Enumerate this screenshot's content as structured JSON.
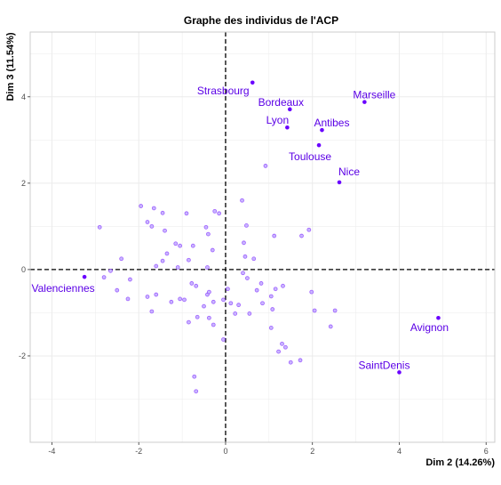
{
  "chart_data": {
    "type": "scatter",
    "title": "Graphe des individus de l'ACP",
    "xlabel": "Dim 2 (14.26%)",
    "ylabel": "Dim 3 (11.54%)",
    "xlim": [
      -4.5,
      6.2
    ],
    "ylim": [
      -4.0,
      5.5
    ],
    "xticks": [
      -4,
      -2,
      0,
      2,
      4,
      6
    ],
    "xtick_labels": [
      "-4",
      "-2",
      "0",
      "2",
      "4",
      "6"
    ],
    "yticks": [
      -2,
      0,
      2,
      4
    ],
    "ytick_labels": [
      "-2",
      "0",
      "2",
      "4"
    ],
    "grid": true,
    "reference_lines": {
      "x": 0,
      "y": 0,
      "style": "dashed"
    },
    "colors": {
      "points": "#6a00ff",
      "labels": "#5b00e6",
      "faded_fill": "#c9b6ff",
      "panel_border": "#cccccc",
      "grid": "#ebebeb"
    },
    "labeled_points": [
      {
        "label": "Strasbourg",
        "x": 0.62,
        "y": 4.33
      },
      {
        "label": "Bordeaux",
        "x": 1.48,
        "y": 3.71
      },
      {
        "label": "Marseille",
        "x": 3.2,
        "y": 3.88
      },
      {
        "label": "Lyon",
        "x": 1.42,
        "y": 3.29
      },
      {
        "label": "Antibes",
        "x": 2.22,
        "y": 3.23
      },
      {
        "label": "Toulouse",
        "x": 2.15,
        "y": 2.88
      },
      {
        "label": "Nice",
        "x": 2.62,
        "y": 2.02
      },
      {
        "label": "Valenciennes",
        "x": -3.25,
        "y": -0.17
      },
      {
        "label": "Avignon",
        "x": 4.9,
        "y": -1.12
      },
      {
        "label": "SaintDenis",
        "x": 4.0,
        "y": -2.38
      }
    ],
    "unlabeled_points": [
      {
        "x": -2.9,
        "y": 0.98
      },
      {
        "x": -2.4,
        "y": 0.25
      },
      {
        "x": -2.65,
        "y": -0.03
      },
      {
        "x": -2.8,
        "y": -0.18
      },
      {
        "x": -2.5,
        "y": -0.48
      },
      {
        "x": -2.25,
        "y": -0.68
      },
      {
        "x": -2.2,
        "y": -0.23
      },
      {
        "x": -1.95,
        "y": 1.47
      },
      {
        "x": -1.8,
        "y": 1.1
      },
      {
        "x": -1.65,
        "y": 1.42
      },
      {
        "x": -1.45,
        "y": 1.31
      },
      {
        "x": -1.7,
        "y": 1.0
      },
      {
        "x": -1.6,
        "y": 0.08
      },
      {
        "x": -1.6,
        "y": -0.58
      },
      {
        "x": -1.8,
        "y": -0.63
      },
      {
        "x": -1.7,
        "y": -0.97
      },
      {
        "x": -1.45,
        "y": 0.2
      },
      {
        "x": -1.4,
        "y": 0.9
      },
      {
        "x": -1.35,
        "y": 0.37
      },
      {
        "x": -1.25,
        "y": -0.75
      },
      {
        "x": -1.15,
        "y": 0.6
      },
      {
        "x": -1.05,
        "y": 0.55
      },
      {
        "x": -1.1,
        "y": 0.05
      },
      {
        "x": -1.05,
        "y": -0.68
      },
      {
        "x": -0.95,
        "y": -0.7
      },
      {
        "x": -0.9,
        "y": 1.3
      },
      {
        "x": -0.85,
        "y": 0.22
      },
      {
        "x": -0.85,
        "y": -1.22
      },
      {
        "x": -0.75,
        "y": 0.55
      },
      {
        "x": -0.78,
        "y": -0.32
      },
      {
        "x": -0.68,
        "y": -0.38
      },
      {
        "x": -0.65,
        "y": -1.1
      },
      {
        "x": -0.72,
        "y": -2.48
      },
      {
        "x": -0.68,
        "y": -2.82
      },
      {
        "x": -0.5,
        "y": -0.85
      },
      {
        "x": -0.42,
        "y": 0.05
      },
      {
        "x": -0.42,
        "y": -0.58
      },
      {
        "x": -0.38,
        "y": -0.52
      },
      {
        "x": -0.38,
        "y": -1.12
      },
      {
        "x": -0.45,
        "y": 0.98
      },
      {
        "x": -0.4,
        "y": 0.82
      },
      {
        "x": -0.3,
        "y": 0.45
      },
      {
        "x": -0.28,
        "y": -0.75
      },
      {
        "x": -0.28,
        "y": -1.28
      },
      {
        "x": -0.25,
        "y": 1.35
      },
      {
        "x": -0.15,
        "y": 1.3
      },
      {
        "x": -0.05,
        "y": -0.7
      },
      {
        "x": -0.05,
        "y": -1.62
      },
      {
        "x": 0.05,
        "y": -0.45
      },
      {
        "x": 0.12,
        "y": -0.78
      },
      {
        "x": 0.22,
        "y": -1.02
      },
      {
        "x": 0.3,
        "y": -0.82
      },
      {
        "x": 0.38,
        "y": 1.6
      },
      {
        "x": 0.42,
        "y": 0.62
      },
      {
        "x": 0.45,
        "y": 0.3
      },
      {
        "x": 0.4,
        "y": -0.08
      },
      {
        "x": 0.48,
        "y": 1.02
      },
      {
        "x": 0.5,
        "y": -0.2
      },
      {
        "x": 0.55,
        "y": -1.02
      },
      {
        "x": 0.65,
        "y": 0.25
      },
      {
        "x": 0.72,
        "y": -0.48
      },
      {
        "x": 0.82,
        "y": -0.32
      },
      {
        "x": 0.85,
        "y": -0.78
      },
      {
        "x": 0.92,
        "y": 2.4
      },
      {
        "x": 1.05,
        "y": -0.62
      },
      {
        "x": 1.08,
        "y": -0.92
      },
      {
        "x": 1.05,
        "y": -1.35
      },
      {
        "x": 1.12,
        "y": 0.78
      },
      {
        "x": 1.15,
        "y": -0.45
      },
      {
        "x": 1.22,
        "y": -1.9
      },
      {
        "x": 1.3,
        "y": -1.72
      },
      {
        "x": 1.38,
        "y": -1.8
      },
      {
        "x": 1.32,
        "y": -0.38
      },
      {
        "x": 1.5,
        "y": -2.15
      },
      {
        "x": 1.72,
        "y": -2.1
      },
      {
        "x": 1.75,
        "y": 0.78
      },
      {
        "x": 1.92,
        "y": 0.92
      },
      {
        "x": 1.98,
        "y": -0.52
      },
      {
        "x": 2.05,
        "y": -0.95
      },
      {
        "x": 2.52,
        "y": -0.95
      },
      {
        "x": 2.42,
        "y": -1.32
      }
    ]
  }
}
